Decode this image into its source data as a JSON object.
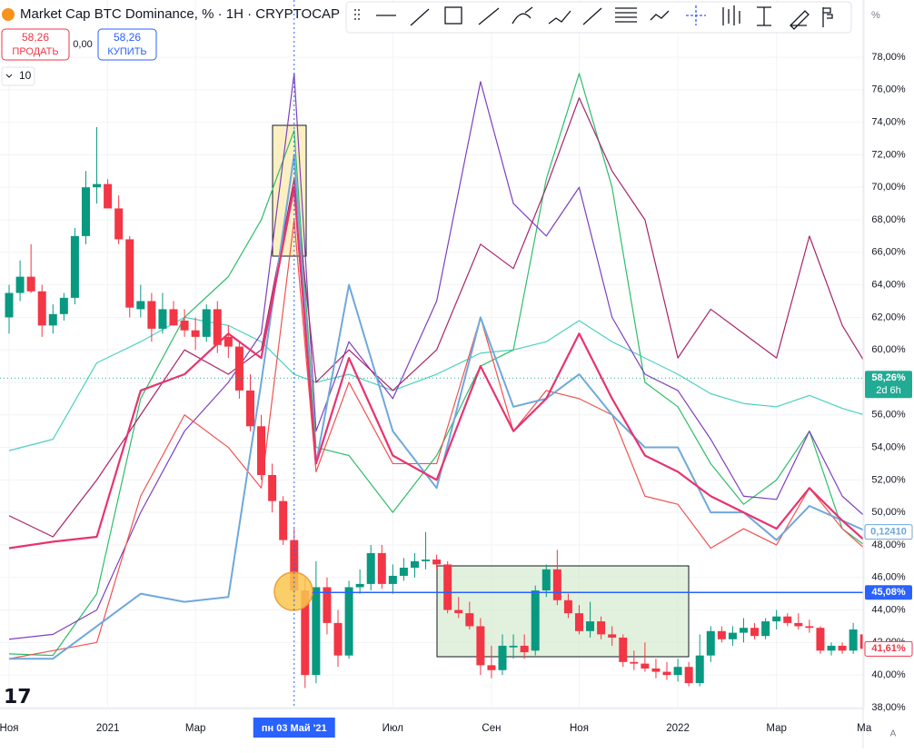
{
  "chart_data": {
    "type": "candlestick",
    "title": "Market Cap BTC Dominance, % · 1H · CRYPTOCAP",
    "sell_price": "58,26",
    "sell_label": "ПРОДАТЬ",
    "spread": "0,00",
    "buy_price": "58,26",
    "buy_label": "КУПИТЬ",
    "interval_count": "10",
    "scale_label": "%",
    "auto_label": "A",
    "xlim": [
      -0.83,
      77.9
    ],
    "ylim": [
      37.94,
      81.52
    ],
    "grid": true,
    "up_color": "#089981",
    "down_color": "#f23645",
    "xticks": [
      {
        "value": 0,
        "label": "Ноя"
      },
      {
        "value": 9,
        "label": "2021"
      },
      {
        "value": 17,
        "label": "Мар"
      },
      {
        "value": 35,
        "label": "Июл"
      },
      {
        "value": 44,
        "label": "Сен"
      },
      {
        "value": 52,
        "label": "Ноя"
      },
      {
        "value": 61,
        "label": "2022"
      },
      {
        "value": 70,
        "label": "Мар"
      },
      {
        "value": 78,
        "label": "Ма"
      }
    ],
    "yticks": [
      {
        "value": 38,
        "label": "38,00%"
      },
      {
        "value": 40,
        "label": "40,00%"
      },
      {
        "value": 42,
        "label": "42,00%"
      },
      {
        "value": 44,
        "label": "44,00%"
      },
      {
        "value": 46,
        "label": "46,00%"
      },
      {
        "value": 48,
        "label": "48,00%"
      },
      {
        "value": 50,
        "label": "50,00%"
      },
      {
        "value": 52,
        "label": "52,00%"
      },
      {
        "value": 54,
        "label": "54,00%"
      },
      {
        "value": 56,
        "label": "56,00%"
      },
      {
        "value": 58,
        "label": "58,00%"
      },
      {
        "value": 60,
        "label": "60,00%"
      },
      {
        "value": 62,
        "label": "62,00%"
      },
      {
        "value": 64,
        "label": "64,00%"
      },
      {
        "value": 66,
        "label": "66,00%"
      },
      {
        "value": 68,
        "label": "68,00%"
      },
      {
        "value": 70,
        "label": "70,00%"
      },
      {
        "value": 72,
        "label": "72,00%"
      },
      {
        "value": 74,
        "label": "74,00%"
      },
      {
        "value": 76,
        "label": "76,00%"
      },
      {
        "value": 78,
        "label": "78,00%"
      }
    ],
    "crosshair": {
      "x": 26,
      "label": "пн 03 Май '21"
    },
    "current_price": {
      "value": 58.26,
      "label": "58,26%",
      "countdown": "2d 6h",
      "color": "#22ab94"
    },
    "hline": {
      "value": 45.08,
      "label": "45,08%",
      "color": "#2962ff"
    },
    "last_close_label": {
      "value": 41.61,
      "label": "41,61%"
    },
    "line_value_label": {
      "value": 48.8,
      "label": "0,12410",
      "color": "#6fa8dc"
    },
    "candles": {
      "open": [
        62,
        63.5,
        64.5,
        63.6,
        61.5,
        62.2,
        63.2,
        67,
        70,
        70.2,
        68.7,
        66.8,
        62.5,
        63,
        61.3,
        62.5,
        61.8,
        61.2,
        60.8,
        62.5,
        60.8,
        60.2,
        57.5,
        55.3,
        52.3,
        50.7,
        48.3,
        45.2,
        40,
        45.4,
        43.2,
        41.2,
        45.4,
        45.6,
        47.5,
        45.6,
        46.1,
        46.6,
        47,
        47.1,
        46.8,
        44,
        43.8,
        43,
        40.6,
        40.3,
        41.7,
        41.8,
        41.5,
        45.2,
        46.5,
        44.6,
        43.8,
        42.7,
        43.3,
        42.5,
        42.3,
        40.8,
        40.7,
        40.4,
        40.2,
        40,
        40.5,
        39.5,
        41.2,
        42.7,
        42.2,
        42.6,
        42.9,
        42.4,
        43.3,
        43.6,
        43.2,
        43,
        42.9,
        41.5,
        41.8,
        41.5,
        42.5
      ],
      "high": [
        64,
        65.5,
        66.5,
        64,
        62.8,
        63.5,
        67.5,
        71,
        73.7,
        70.5,
        69.5,
        67,
        64,
        63.5,
        63.5,
        63,
        62.5,
        62,
        62.8,
        63,
        61.5,
        60.5,
        58.5,
        56,
        53,
        51,
        49,
        46,
        47,
        46,
        44,
        45.8,
        46.5,
        48,
        48,
        46.8,
        47.2,
        47.5,
        48.8,
        47.4,
        47,
        44.8,
        44.5,
        43.5,
        41.8,
        42.5,
        42.5,
        42.5,
        45.5,
        46.8,
        47.7,
        45,
        44.3,
        44.5,
        43.6,
        43,
        42.5,
        41.5,
        42,
        41,
        40.8,
        41,
        40.8,
        42.5,
        43,
        43,
        43,
        43.5,
        43.2,
        43.5,
        44,
        43.8,
        43.8,
        43.4,
        43,
        42,
        42,
        43.2,
        42.8
      ],
      "low": [
        61,
        63,
        63.5,
        60.8,
        61,
        61.8,
        62.8,
        66.5,
        69,
        69,
        66.5,
        62,
        62,
        60.5,
        61,
        61.5,
        60.8,
        60,
        60.5,
        59.8,
        59.5,
        57,
        55,
        52,
        50,
        48,
        44.5,
        39.2,
        39.5,
        42.5,
        40.5,
        41,
        45,
        45.2,
        45.3,
        45,
        45.8,
        46,
        46.5,
        46.5,
        43.8,
        43.5,
        42.8,
        40,
        39.8,
        40,
        41,
        41,
        41.2,
        44.8,
        44.3,
        43.5,
        42.5,
        42.3,
        42.2,
        41.8,
        40.5,
        40.3,
        40.2,
        39.8,
        39.7,
        39.6,
        39.3,
        39.3,
        40.8,
        42,
        41.8,
        42,
        42.2,
        42.2,
        42.8,
        43,
        42.8,
        42.6,
        41.3,
        41.2,
        41.3,
        41.3,
        41.4
      ],
      "close": [
        63.5,
        64.5,
        63.6,
        61.5,
        62.2,
        63.2,
        67,
        70,
        70.2,
        68.7,
        66.8,
        62.6,
        63,
        61.3,
        62.5,
        61.5,
        61.2,
        60.8,
        62.5,
        60.3,
        60.2,
        57.5,
        55.3,
        52.3,
        50.7,
        48.3,
        45.2,
        40,
        45.4,
        43.2,
        41.2,
        45.4,
        45.6,
        47.5,
        45.6,
        46.1,
        46.6,
        47,
        47.1,
        46.8,
        44,
        43.8,
        43,
        40.6,
        40.3,
        41.8,
        41.8,
        41.4,
        45.2,
        46.5,
        44.6,
        43.8,
        42.7,
        43.3,
        42.5,
        42.3,
        40.8,
        40.7,
        40.4,
        40.2,
        40,
        40.5,
        39.5,
        41.2,
        42.7,
        42.2,
        42.6,
        42.9,
        42.4,
        43.3,
        43.6,
        43.2,
        43,
        42.9,
        41.5,
        41.8,
        41.5,
        42.8,
        41.61
      ]
    },
    "lines": {
      "x": [
        0,
        4,
        8,
        12,
        16,
        20,
        23,
        26,
        28,
        31,
        35,
        39,
        43,
        46,
        49,
        52,
        55,
        58,
        61,
        64,
        67,
        70,
        73,
        76,
        78
      ],
      "series": [
        {
          "color": "#4dd0c0",
          "width": 1.2,
          "values": [
            53.8,
            54.5,
            59.2,
            60.5,
            62,
            61.5,
            60.5,
            58.5,
            58,
            58.5,
            57.5,
            58.5,
            59.8,
            60,
            60.5,
            61.8,
            60.5,
            59.5,
            58.5,
            57.3,
            56.7,
            56.5,
            57.2,
            56.4,
            56
          ]
        },
        {
          "color": "#2ebd6b",
          "width": 1.2,
          "values": [
            41.3,
            41.2,
            45,
            57,
            62,
            64.5,
            68,
            73.5,
            54,
            53.5,
            50,
            53.5,
            59,
            60,
            70.5,
            77,
            70,
            58,
            56.5,
            53,
            50.5,
            52,
            55,
            49,
            48
          ]
        },
        {
          "color": "#7e3fbf",
          "width": 1.2,
          "values": [
            42.2,
            42.5,
            44,
            50,
            55,
            58,
            61,
            77,
            55,
            60.5,
            57,
            63,
            76.5,
            69,
            67,
            70,
            62,
            58.5,
            57.5,
            54.5,
            51,
            50.8,
            55,
            51,
            49.8
          ]
        },
        {
          "color": "#a8236b",
          "width": 1.2,
          "values": [
            49.8,
            48.5,
            52,
            56,
            60,
            58.5,
            60,
            70.5,
            58,
            60,
            57.5,
            60,
            66.5,
            65,
            70,
            75.5,
            71,
            68,
            59.5,
            62.5,
            61,
            59.5,
            67,
            61.5,
            59.3
          ]
        },
        {
          "color": "#ef5350",
          "width": 1.2,
          "values": [
            41,
            41.5,
            42,
            51,
            56,
            54,
            51.5,
            68,
            52.5,
            58,
            53,
            53,
            62,
            55,
            57.5,
            57,
            56,
            51,
            50.5,
            47.8,
            49,
            48,
            51.5,
            49,
            47.8
          ]
        },
        {
          "color": "#6fa8dc",
          "width": 2,
          "values": [
            41,
            41,
            43,
            45,
            44.5,
            44.8,
            58,
            72,
            53,
            64,
            55,
            51.5,
            62,
            56.5,
            57,
            58.5,
            56,
            54,
            54,
            50,
            50,
            48.3,
            50.4,
            49.5,
            48.9
          ]
        },
        {
          "color": "#e8336f",
          "width": 2.2,
          "values": [
            47.8,
            48.2,
            48.5,
            57.5,
            58.5,
            61,
            59.5,
            70,
            53,
            59.5,
            53.5,
            52,
            59,
            55,
            57,
            61,
            57,
            53.5,
            52.5,
            51,
            50,
            49,
            51.5,
            49.5,
            48.3
          ]
        }
      ]
    }
  }
}
